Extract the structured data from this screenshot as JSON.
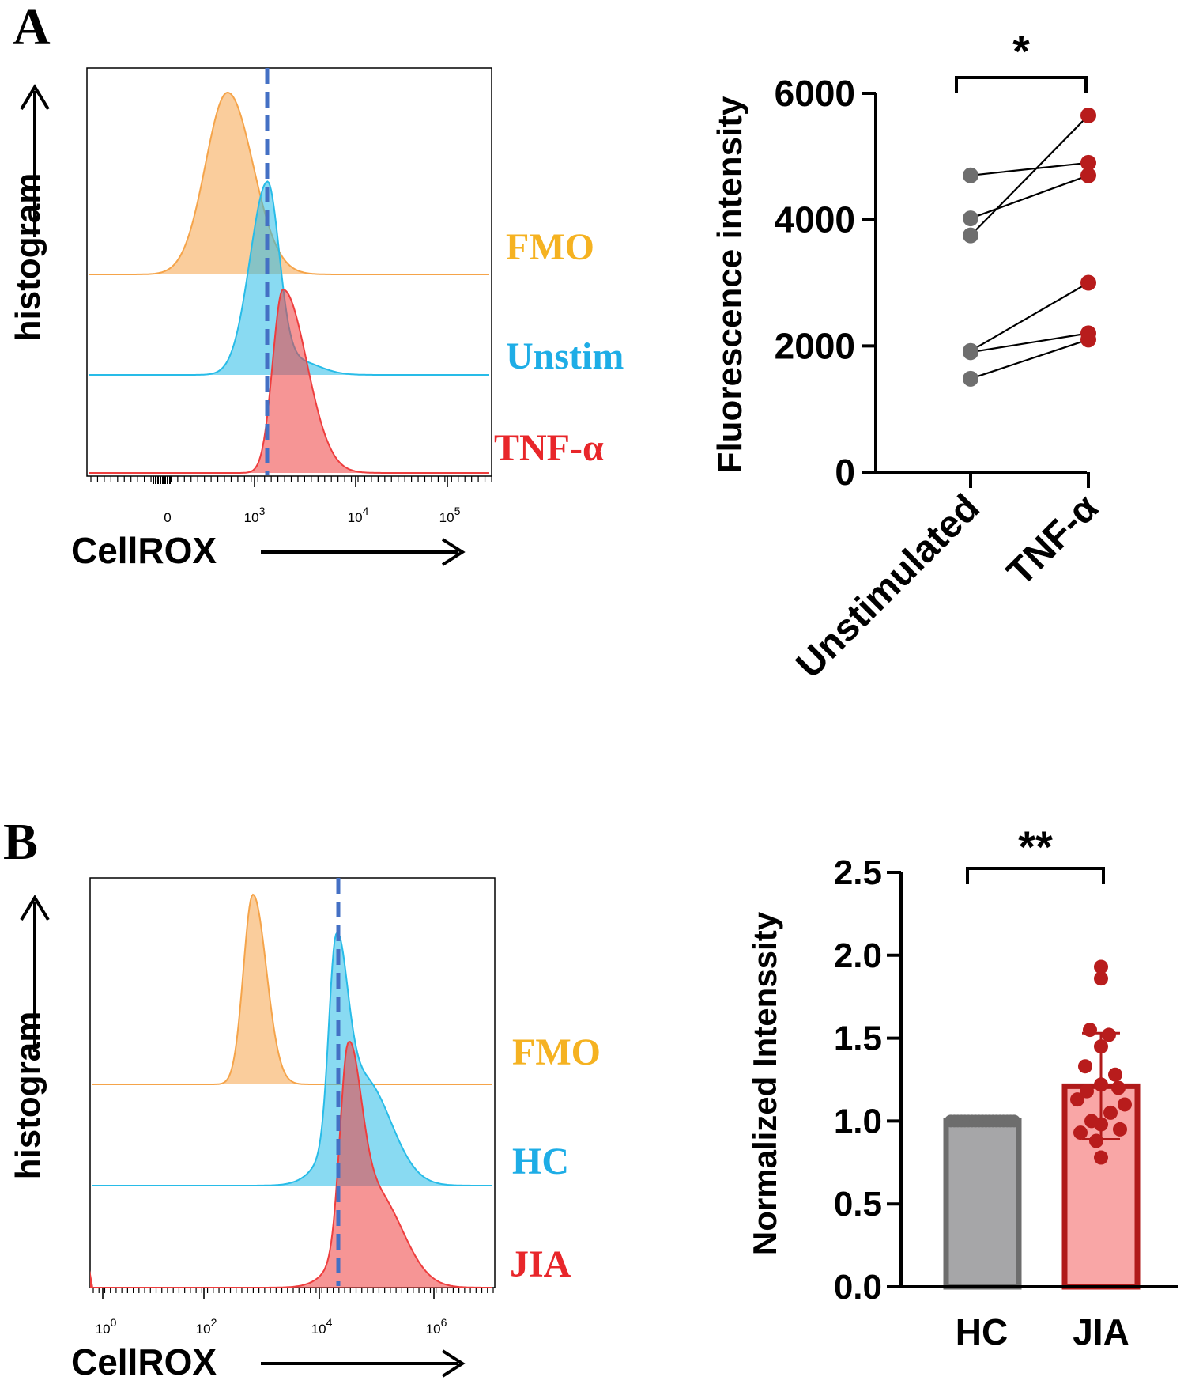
{
  "colors": {
    "fmo": "#F5A44A",
    "unstim": "#28BCE8",
    "tnf": "#EE3E3E",
    "hc_bar_fill": "#A6A6A8",
    "hc_bar_edge": "#6D6D6D",
    "jia_bar_fill": "#F9A6A6",
    "jia_bar_edge": "#B01A1A",
    "paired_unstim": "#6E6E6E",
    "paired_tnf": "#B81C1C",
    "gate_line": "#4470C4",
    "fmo_label": "#F5B221",
    "unstim_label": "#1EADE6",
    "tnf_label": "#E8262A"
  },
  "panelA": {
    "label": "A",
    "histogram": {
      "ylabel": "histogram",
      "xlabel": "CellROX",
      "ticks": [
        {
          "base": "0",
          "exp": ""
        },
        {
          "base": "10",
          "exp": "3"
        },
        {
          "base": "10",
          "exp": "4"
        },
        {
          "base": "10",
          "exp": "5"
        }
      ],
      "legend": [
        "FMO",
        "Unstim",
        "TNF-α"
      ]
    },
    "chart_data": {
      "type": "scatter",
      "title": "",
      "ylabel": "Fluorescence intensity",
      "categories": [
        "Unstimulated",
        "TNF-α"
      ],
      "yticks": [
        "0",
        "2000",
        "4000",
        "6000"
      ],
      "ylim": [
        0,
        6000
      ],
      "significance": "*",
      "pairs": [
        [
          4700,
          4900
        ],
        [
          4020,
          4700
        ],
        [
          3750,
          5650
        ],
        [
          1920,
          3000
        ],
        [
          1900,
          2200
        ],
        [
          1480,
          2100
        ]
      ]
    }
  },
  "panelB": {
    "label": "B",
    "histogram": {
      "ylabel": "histogram",
      "xlabel": "CellROX",
      "ticks": [
        {
          "base": "10",
          "exp": "0"
        },
        {
          "base": "10",
          "exp": "2"
        },
        {
          "base": "10",
          "exp": "4"
        },
        {
          "base": "10",
          "exp": "6"
        }
      ],
      "legend": [
        "FMO",
        "HC",
        "JIA"
      ]
    },
    "chart_data": {
      "type": "bar",
      "title": "",
      "ylabel": "Normalized Intenssity",
      "categories": [
        "HC",
        "JIA"
      ],
      "yticks": [
        "0.0",
        "0.5",
        "1.0",
        "1.5",
        "2.0",
        "2.5"
      ],
      "ylim": [
        0,
        2.5
      ],
      "significance": "**",
      "values": [
        1.0,
        1.21
      ],
      "sd": [
        0,
        0.32
      ],
      "hc_points": [
        1.0,
        1.0,
        1.0,
        1.0,
        1.0,
        1.0,
        1.0,
        1.0,
        1.0,
        1.0,
        1.0,
        1.0,
        1.0,
        1.0,
        1.0,
        1.0,
        1.0,
        1.0,
        1.0
      ],
      "jia_points": [
        1.93,
        1.86,
        1.55,
        1.52,
        1.45,
        1.33,
        1.28,
        1.22,
        1.2,
        1.18,
        1.13,
        1.1,
        1.05,
        1.0,
        0.98,
        0.95,
        0.93,
        0.88,
        0.78
      ]
    }
  }
}
